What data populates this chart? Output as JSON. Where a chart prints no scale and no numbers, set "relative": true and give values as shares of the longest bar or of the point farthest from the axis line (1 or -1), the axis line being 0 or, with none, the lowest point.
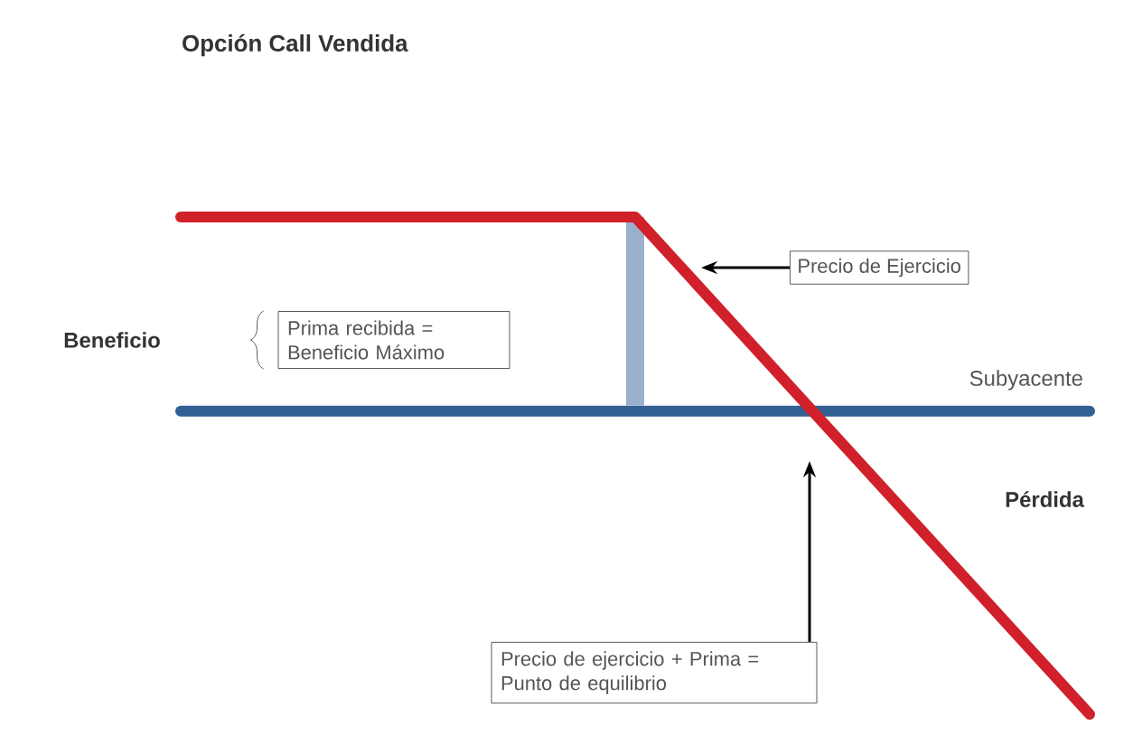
{
  "chart_data": {
    "type": "line",
    "title": "Opción Call Vendida",
    "xlabel": "Subyacente",
    "relative": true,
    "categories": [
      null,
      null,
      null
    ],
    "series": [
      {
        "color": "#d0202a",
        "values": [
          0.64,
          0.64,
          -1
        ]
      }
    ],
    "ref_lines": [
      {
        "axis": "y",
        "value": 0,
        "color": "#336094"
      }
    ],
    "annotations": [
      "Beneficio",
      "Prima recibida = Beneficio Máximo",
      "Precio de Ejercicio",
      "Pérdida",
      "Precio de ejercicio + Prima = Punto de equilibrio"
    ]
  }
}
